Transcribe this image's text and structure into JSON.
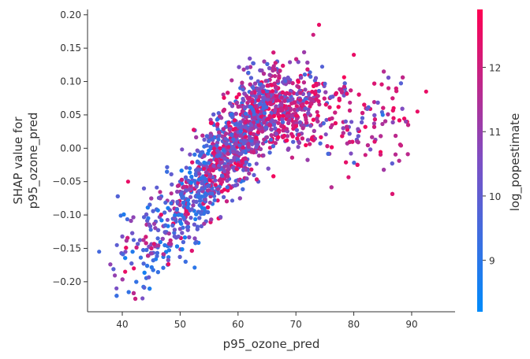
{
  "chart_data": {
    "type": "scatter",
    "title": "",
    "xlabel": "p95_ozone_pred",
    "ylabel": "SHAP value for\np95_ozone_pred",
    "xlim": [
      34,
      97.5
    ],
    "ylim": [
      -0.245,
      0.208
    ],
    "xticks": [
      40,
      50,
      60,
      70,
      80,
      90
    ],
    "yticks": [
      -0.2,
      -0.15,
      -0.1,
      -0.05,
      0.0,
      0.05,
      0.1,
      0.15,
      0.2
    ],
    "ytick_labels": [
      "−0.20",
      "−0.15",
      "−0.10",
      "−0.05",
      "0.00",
      "0.05",
      "0.10",
      "0.15",
      "0.20"
    ],
    "grid": false,
    "point_count_approx": 3000,
    "colorbar": {
      "label": "log_popestimate",
      "range": [
        8.2,
        12.9
      ],
      "ticks": [
        9,
        10,
        11,
        12
      ],
      "low_color": "#008bfb",
      "mid_color": "#7d4fc4",
      "high_color": "#ff0052"
    },
    "trend": {
      "description": "SHAP value rises with p95_ozone_pred up to about 65-70 then plateaus and declines slightly",
      "x": [
        36,
        40,
        45,
        50,
        55,
        60,
        65,
        70,
        75,
        80,
        85,
        90,
        93
      ],
      "y": [
        -0.19,
        -0.17,
        -0.14,
        -0.09,
        -0.04,
        0.02,
        0.06,
        0.06,
        0.05,
        0.04,
        0.04,
        0.03,
        0.02
      ]
    },
    "series": [
      {
        "x": [
          36,
          39,
          40.5,
          41,
          42,
          43.5,
          92.5,
          91,
          89,
          86,
          80,
          85,
          82,
          74,
          73
        ],
        "y": [
          -0.155,
          -0.21,
          -0.185,
          -0.05,
          -0.18,
          -0.225,
          0.085,
          0.055,
          0.04,
          0.09,
          0.14,
          0.05,
          -0.01,
          0.185,
          0.17
        ],
        "color_value": [
          9.5,
          10.5,
          12.5,
          12.5,
          12.5,
          10.5,
          12.5,
          12.5,
          11,
          12,
          12.5,
          9,
          12,
          12.5,
          12
        ]
      }
    ]
  }
}
